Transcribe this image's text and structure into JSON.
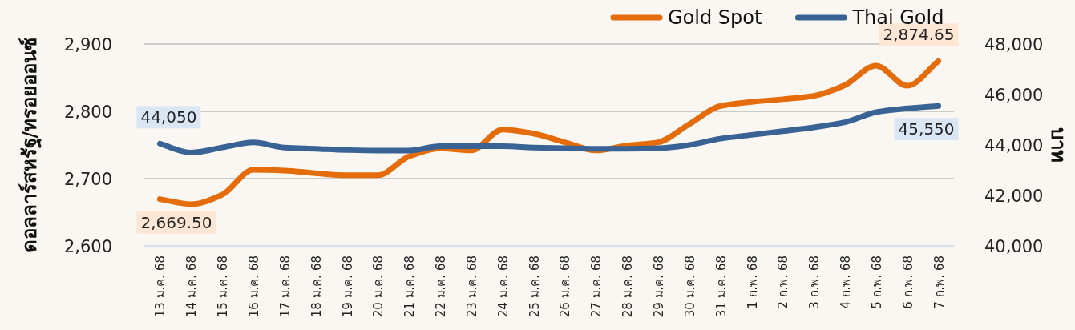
{
  "chart_data": {
    "type": "line",
    "categories": [
      "13 ม.ค. 68",
      "14 ม.ค. 68",
      "15 ม.ค. 68",
      "16 ม.ค. 68",
      "17 ม.ค. 68",
      "18 ม.ค. 68",
      "19 ม.ค. 68",
      "20 ม.ค. 68",
      "21 ม.ค. 68",
      "22 ม.ค. 68",
      "23 ม.ค. 68",
      "24 ม.ค. 68",
      "25 ม.ค. 68",
      "26 ม.ค. 68",
      "27 ม.ค. 68",
      "28 ม.ค. 68",
      "29 ม.ค. 68",
      "30 ม.ค. 68",
      "31 ม.ค. 68",
      "1 ก.พ. 68",
      "2 ก.พ. 68",
      "3 ก.พ. 68",
      "4 ก.พ. 68",
      "5 ก.พ. 68",
      "6 ก.พ. 68",
      "7 ก.พ. 68"
    ],
    "series": [
      {
        "name": "Gold Spot",
        "color": "#e46c0a",
        "values": [
          2669.5,
          2662,
          2676,
          2713,
          2712,
          2708,
          2705,
          2705,
          2733,
          2745,
          2742,
          2773,
          2767,
          2754,
          2742,
          2749,
          2754,
          2781,
          2808,
          2814,
          2818,
          2823,
          2839,
          2868,
          2838,
          2874.65
        ],
        "value_labels": [
          "2,669.50",
          null,
          null,
          null,
          null,
          null,
          null,
          null,
          null,
          null,
          null,
          null,
          null,
          null,
          null,
          null,
          null,
          null,
          null,
          null,
          null,
          null,
          null,
          null,
          null,
          "2,874.65"
        ]
      },
      {
        "name": "Thai Gold",
        "color": "#3a6395",
        "axis": "y2",
        "values": [
          44050,
          43700,
          43900,
          44100,
          43900,
          43850,
          43800,
          43780,
          43780,
          43950,
          43950,
          43950,
          43900,
          43870,
          43850,
          43850,
          43870,
          44000,
          44250,
          44400,
          44550,
          44700,
          44900,
          45300,
          45450,
          45550
        ],
        "value_labels": [
          "44,050",
          null,
          null,
          null,
          null,
          null,
          null,
          null,
          null,
          null,
          null,
          null,
          null,
          null,
          null,
          null,
          null,
          null,
          null,
          null,
          null,
          null,
          null,
          null,
          null,
          "45,550"
        ]
      }
    ],
    "ylabel": "ดอลลาร์สหรัฐ/ทรอยออนซ์",
    "y2label": "บาท",
    "ylim": [
      2600,
      2900
    ],
    "yticks": [
      {
        "value": 2600,
        "label": "2,600"
      },
      {
        "value": 2700,
        "label": "2,700"
      },
      {
        "value": 2800,
        "label": "2,800"
      },
      {
        "value": 2900,
        "label": "2,900"
      }
    ],
    "y2lim": [
      40000,
      48000
    ],
    "y2ticks": [
      {
        "value": 40000,
        "label": "40,000"
      },
      {
        "value": 42000,
        "label": "42,000"
      },
      {
        "value": 44000,
        "label": "44,000"
      },
      {
        "value": 46000,
        "label": "46,000"
      },
      {
        "value": 48000,
        "label": "48,000"
      }
    ],
    "grid": "y",
    "legend": "top right",
    "marker": "none",
    "line_style": "solid"
  }
}
